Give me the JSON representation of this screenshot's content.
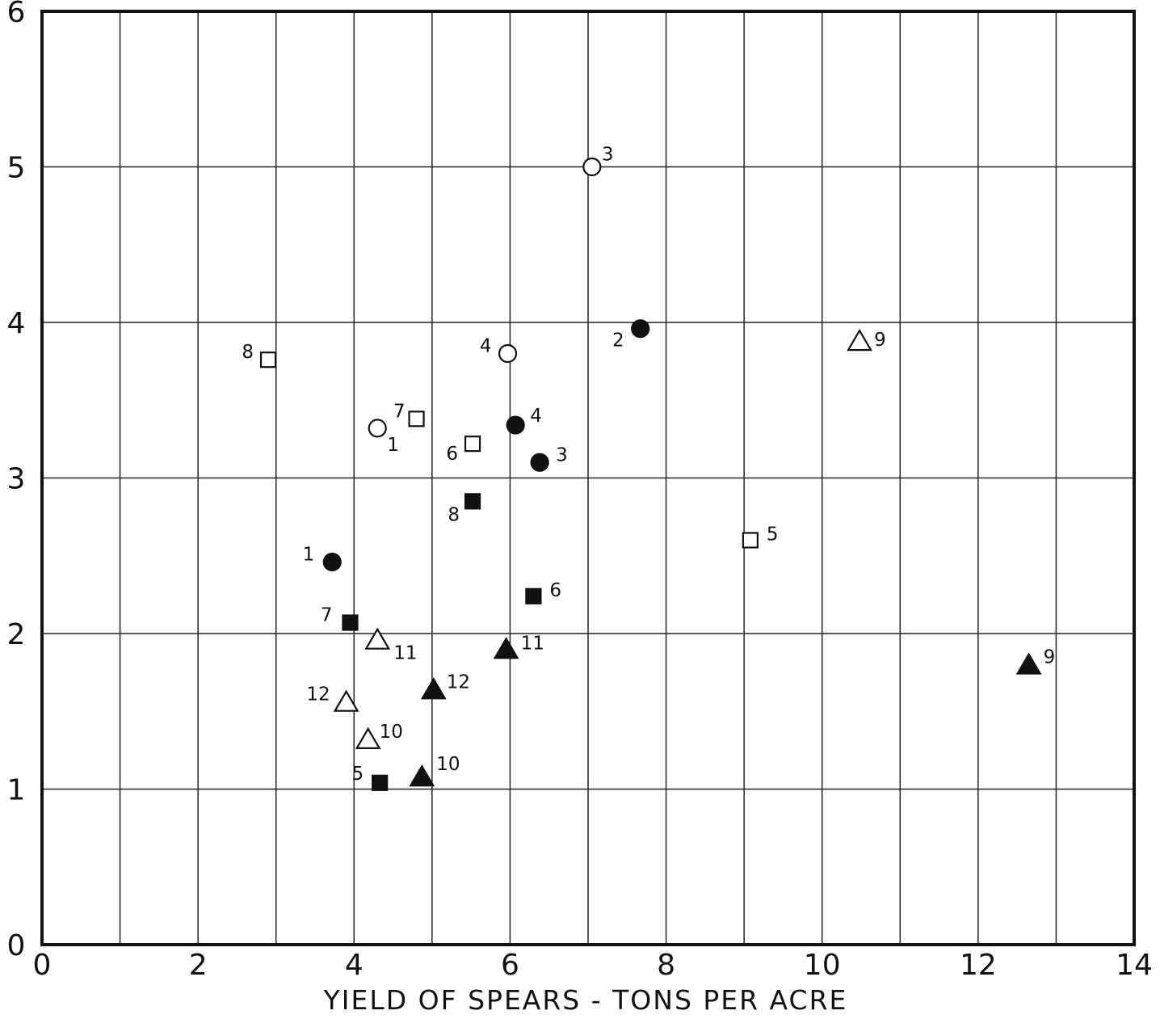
{
  "chart_data": {
    "type": "scatter",
    "title": "",
    "xlabel": "YIELD OF SPEARS - TONS PER ACRE",
    "ylabel": "",
    "xlim": [
      0,
      14
    ],
    "ylim": [
      0,
      6
    ],
    "x_ticks": [
      "0",
      "2",
      "4",
      "6",
      "8",
      "10",
      "12",
      "14"
    ],
    "y_ticks": [
      "0",
      "1",
      "2",
      "3",
      "4",
      "5",
      "6"
    ],
    "grid": true,
    "series": [
      {
        "marker": "open-circle",
        "points": [
          {
            "x": 4.3,
            "y": 3.32,
            "label": "1"
          },
          {
            "x": 7.05,
            "y": 5.0,
            "label": "3"
          },
          {
            "x": 5.97,
            "y": 3.8,
            "label": "4"
          }
        ]
      },
      {
        "marker": "filled-circle",
        "points": [
          {
            "x": 3.72,
            "y": 2.46,
            "label": "1"
          },
          {
            "x": 7.67,
            "y": 3.96,
            "label": "2"
          },
          {
            "x": 6.38,
            "y": 3.1,
            "label": "3"
          },
          {
            "x": 6.07,
            "y": 3.34,
            "label": "4"
          }
        ]
      },
      {
        "marker": "open-square",
        "points": [
          {
            "x": 9.08,
            "y": 2.6,
            "label": "5"
          },
          {
            "x": 5.52,
            "y": 3.22,
            "label": "6"
          },
          {
            "x": 4.8,
            "y": 3.38,
            "label": "7"
          },
          {
            "x": 2.9,
            "y": 3.76,
            "label": "8"
          }
        ]
      },
      {
        "marker": "filled-square",
        "points": [
          {
            "x": 4.33,
            "y": 1.04,
            "label": "5"
          },
          {
            "x": 6.3,
            "y": 2.24,
            "label": "6"
          },
          {
            "x": 3.95,
            "y": 2.07,
            "label": "7"
          },
          {
            "x": 5.52,
            "y": 2.85,
            "label": "8"
          }
        ]
      },
      {
        "marker": "open-triangle",
        "points": [
          {
            "x": 10.48,
            "y": 3.88,
            "label": "9"
          },
          {
            "x": 4.18,
            "y": 1.32,
            "label": "10"
          },
          {
            "x": 4.3,
            "y": 1.96,
            "label": "11"
          },
          {
            "x": 3.9,
            "y": 1.56,
            "label": "12"
          }
        ]
      },
      {
        "marker": "filled-triangle",
        "points": [
          {
            "x": 12.65,
            "y": 1.8,
            "label": "9"
          },
          {
            "x": 4.87,
            "y": 1.08,
            "label": "10"
          },
          {
            "x": 5.95,
            "y": 1.9,
            "label": "11"
          },
          {
            "x": 5.02,
            "y": 1.64,
            "label": "12"
          }
        ]
      }
    ]
  }
}
